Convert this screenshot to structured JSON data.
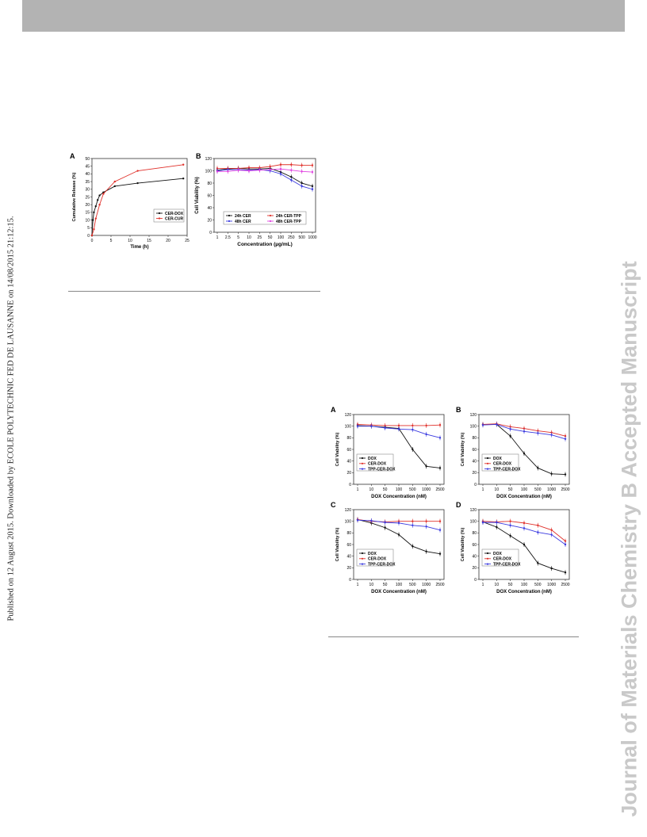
{
  "journal_watermark": "Journal of Materials Chemistry B Accepted Manuscript",
  "published_note": "Published on 12 August 2015. Downloaded by ECOLE POLYTECHNIC FED DE LAUSANNE on 14/08/2015 21:12:15.",
  "figure1": {
    "panelA": {
      "label": "A"
    },
    "panelB": {
      "label": "B"
    }
  },
  "figure2": {
    "panels": [
      {
        "label": "A"
      },
      {
        "label": "B"
      },
      {
        "label": "C"
      },
      {
        "label": "D"
      }
    ]
  },
  "chart_data": [
    {
      "panel": "A",
      "type": "line",
      "xlabel": "Time  (h)",
      "ylabel": "Cumulative Release (%)",
      "xlim": [
        0,
        25
      ],
      "ylim": [
        0,
        50
      ],
      "xticks": [
        0,
        5,
        10,
        15,
        20,
        25
      ],
      "yticks": [
        0,
        5,
        10,
        15,
        20,
        25,
        30,
        35,
        40,
        45,
        50
      ],
      "legend_position": "bottom-right",
      "series": [
        {
          "name": "CER-DOX",
          "color": "#111111",
          "x": [
            0,
            0.25,
            0.5,
            1,
            1.5,
            2,
            3,
            6,
            12,
            24
          ],
          "y": [
            0,
            10,
            15,
            19,
            23,
            26,
            28,
            32,
            34,
            37
          ]
        },
        {
          "name": "CER-CUR",
          "color": "#e0302a",
          "x": [
            0,
            0.5,
            1,
            2,
            3,
            6,
            12,
            24
          ],
          "y": [
            0,
            4,
            11,
            20,
            27,
            35,
            42,
            46
          ]
        }
      ]
    },
    {
      "panel": "B",
      "type": "line",
      "xlabel": "Concentration (µg/mL)",
      "ylabel": "Cell Viability  (%)",
      "categories": [
        "1",
        "2.5",
        "5",
        "10",
        "25",
        "50",
        "100",
        "250",
        "500",
        "1000"
      ],
      "ylim": [
        0,
        120
      ],
      "yticks": [
        0,
        20,
        40,
        60,
        80,
        100,
        120
      ],
      "legend_position": "bottom",
      "series": [
        {
          "name": "24h  CER",
          "color": "#111111",
          "values": [
            101,
            103,
            104,
            103,
            103,
            104,
            98,
            90,
            80,
            75
          ]
        },
        {
          "name": "24h  CER-TPP",
          "color": "#e0302a",
          "values": [
            104,
            104,
            104,
            105,
            105,
            107,
            110,
            110,
            109,
            109
          ]
        },
        {
          "name": "48h  CER",
          "color": "#3a3ae0",
          "values": [
            100,
            102,
            102,
            101,
            102,
            100,
            95,
            85,
            75,
            70
          ]
        },
        {
          "name": "48h  CER-TPP",
          "color": "#e040e0",
          "values": [
            99,
            99,
            101,
            100,
            101,
            102,
            103,
            101,
            99,
            98
          ]
        }
      ]
    },
    {
      "panel": "A",
      "type": "line",
      "xlabel": "DOX Concentration  (nM)",
      "ylabel": "Cell Viability  (%)",
      "categories": [
        "1",
        "10",
        "50",
        "100",
        "500",
        "1000",
        "2500"
      ],
      "ylim": [
        0,
        120
      ],
      "yticks": [
        0,
        20,
        40,
        60,
        80,
        100,
        120
      ],
      "legend_position": "bottom-left",
      "series": [
        {
          "name": "DOX",
          "color": "#111111",
          "values": [
            101,
            100,
            98,
            96,
            60,
            31,
            28
          ]
        },
        {
          "name": "CER-DOX",
          "color": "#e0302a",
          "values": [
            103,
            102,
            101,
            101,
            101,
            101,
            102
          ]
        },
        {
          "name": "TPP-CER-DOX",
          "color": "#3a3ae0",
          "values": [
            100,
            100,
            97,
            95,
            94,
            86,
            80
          ]
        }
      ]
    },
    {
      "panel": "B",
      "type": "line",
      "xlabel": "DOX Concentration  (nM)",
      "ylabel": "Cell Viability  (%)",
      "categories": [
        "1",
        "10",
        "50",
        "100",
        "500",
        "1000",
        "2500"
      ],
      "ylim": [
        0,
        120
      ],
      "yticks": [
        0,
        20,
        40,
        60,
        80,
        100,
        120
      ],
      "legend_position": "bottom-left",
      "series": [
        {
          "name": "DOX",
          "color": "#111111",
          "values": [
            103,
            103,
            83,
            53,
            28,
            18,
            17
          ]
        },
        {
          "name": "CER-DOX",
          "color": "#e0302a",
          "values": [
            103,
            104,
            99,
            96,
            92,
            89,
            83
          ]
        },
        {
          "name": "TPP-CER-DOX",
          "color": "#3a3ae0",
          "values": [
            102,
            103,
            95,
            91,
            88,
            85,
            78
          ]
        }
      ]
    },
    {
      "panel": "C",
      "type": "line",
      "xlabel": "DOX Concentration  (nM)",
      "ylabel": "Cell Viability  (%)",
      "categories": [
        "1",
        "10",
        "50",
        "100",
        "500",
        "1000",
        "2500"
      ],
      "ylim": [
        0,
        120
      ],
      "yticks": [
        0,
        20,
        40,
        60,
        80,
        100,
        120
      ],
      "legend_position": "bottom-left",
      "series": [
        {
          "name": "DOX",
          "color": "#111111",
          "values": [
            103,
            97,
            89,
            77,
            57,
            48,
            44
          ]
        },
        {
          "name": "CER-DOX",
          "color": "#e0302a",
          "values": [
            103,
            100,
            99,
            100,
            100,
            100,
            100
          ]
        },
        {
          "name": "TPP-CER-DOX",
          "color": "#3a3ae0",
          "values": [
            102,
            101,
            98,
            97,
            93,
            91,
            85
          ]
        }
      ]
    },
    {
      "panel": "D",
      "type": "line",
      "xlabel": "DOX Concentration  (nM)",
      "ylabel": "Cell Viability  (%)",
      "categories": [
        "1",
        "10",
        "50",
        "100",
        "500",
        "1000",
        "2500"
      ],
      "ylim": [
        0,
        120
      ],
      "yticks": [
        0,
        20,
        40,
        60,
        80,
        100,
        120
      ],
      "legend_position": "bottom-left",
      "series": [
        {
          "name": "DOX",
          "color": "#111111",
          "values": [
            99,
            90,
            75,
            60,
            28,
            19,
            12
          ]
        },
        {
          "name": "CER-DOX",
          "color": "#e0302a",
          "values": [
            100,
            99,
            100,
            97,
            93,
            85,
            66
          ]
        },
        {
          "name": "TPP-CER-DOX",
          "color": "#3a3ae0",
          "values": [
            98,
            98,
            93,
            88,
            81,
            77,
            60
          ]
        }
      ]
    }
  ]
}
